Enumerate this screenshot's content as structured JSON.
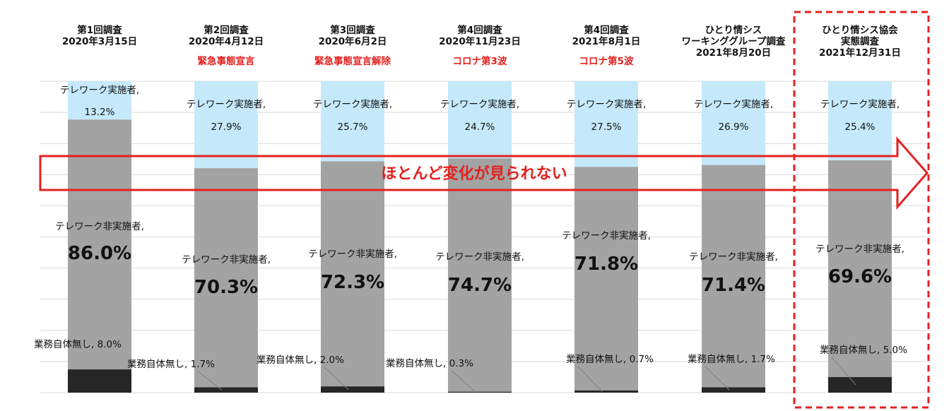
{
  "chart_data": {
    "type": "bar",
    "stacked": true,
    "percent": true,
    "grid": true,
    "categories": [
      {
        "title": [
          "第1回調査",
          "2020年3月15日"
        ],
        "event": ""
      },
      {
        "title": [
          "第2回調査",
          "2020年4月12日"
        ],
        "event": "緊急事態宣言"
      },
      {
        "title": [
          "第3回調査",
          "2020年6月2日"
        ],
        "event": "緊急事態宣言解除"
      },
      {
        "title": [
          "第4回調査",
          "2020年11月23日"
        ],
        "event": "コロナ第3波"
      },
      {
        "title": [
          "第4回調査",
          "2021年8月1日"
        ],
        "event": "コロナ第5波"
      },
      {
        "title": [
          "ひとり情シス",
          "ワーキンググループ調査",
          "2021年8月20日"
        ],
        "event": ""
      },
      {
        "title": [
          "ひとり情シス協会",
          "実態調査",
          "2021年12月31日"
        ],
        "event": ""
      }
    ],
    "series": [
      {
        "name": "業務自体無し",
        "color": "#262626",
        "values": [
          8.0,
          1.7,
          2.0,
          0.3,
          0.7,
          1.7,
          5.0
        ],
        "labels": [
          "業務自体無し, 8.0%",
          "業務自体無し, 1.7%",
          "業務自体無し, 2.0%",
          "業務自体無し, 0.3%",
          "業務自体無し, 0.7%",
          "業務自体無し, 1.7%",
          "業務自体無し, 5.0%"
        ]
      },
      {
        "name": "テレワーク非実施者",
        "color": "#a3a3a3",
        "values": [
          86.0,
          70.3,
          72.3,
          74.7,
          71.8,
          71.4,
          69.6
        ],
        "labels": [
          "86.0%",
          "70.3%",
          "72.3%",
          "74.7%",
          "71.8%",
          "71.4%",
          "69.6%"
        ]
      },
      {
        "name": "テレワーク実施者",
        "color": "#c5e9fb",
        "values": [
          13.2,
          27.9,
          25.7,
          24.7,
          27.5,
          26.9,
          25.4
        ],
        "labels": [
          "13.2%",
          "27.9%",
          "25.7%",
          "24.7%",
          "27.5%",
          "26.9%",
          "25.4%"
        ]
      }
    ],
    "series_prefix": {
      "nonimpl": "テレワーク非実施者,",
      "impl": "テレワーク実施者,"
    },
    "annotation": "ほとんど変化が見られない",
    "highlight_index": 6
  }
}
